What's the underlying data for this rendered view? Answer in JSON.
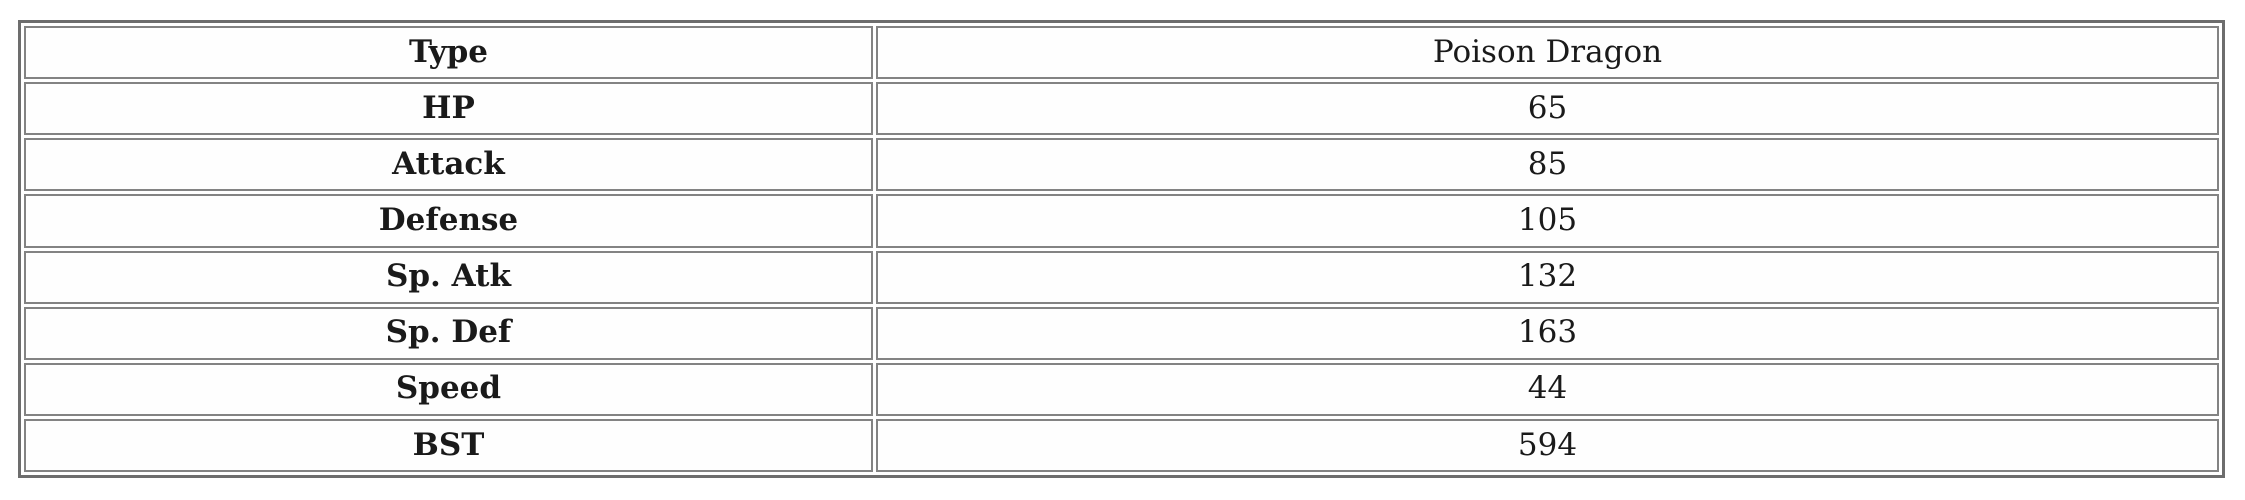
{
  "table": {
    "rows": [
      {
        "label": "Type",
        "value": "Poison Dragon"
      },
      {
        "label": "HP",
        "value": "65"
      },
      {
        "label": "Attack",
        "value": "85"
      },
      {
        "label": "Defense",
        "value": "105"
      },
      {
        "label": "Sp. Atk",
        "value": "132"
      },
      {
        "label": "Sp. Def",
        "value": "163"
      },
      {
        "label": "Speed",
        "value": "44"
      },
      {
        "label": "BST",
        "value": "594"
      }
    ]
  },
  "chart_data": {
    "type": "table",
    "title": "",
    "categories": [
      "Type",
      "HP",
      "Attack",
      "Defense",
      "Sp. Atk",
      "Sp. Def",
      "Speed",
      "BST"
    ],
    "values": [
      "Poison Dragon",
      65,
      85,
      105,
      132,
      163,
      44,
      594
    ],
    "layout_hints": {
      "label_column_align": "center",
      "value_column_align": "center",
      "label_column_bold": true,
      "label_column_width_pct": 38
    }
  },
  "colors": {
    "background": "#ffffff",
    "text": "#1a1a1a",
    "outer_border": "#6d6d6d",
    "cell_border": "#838383"
  }
}
